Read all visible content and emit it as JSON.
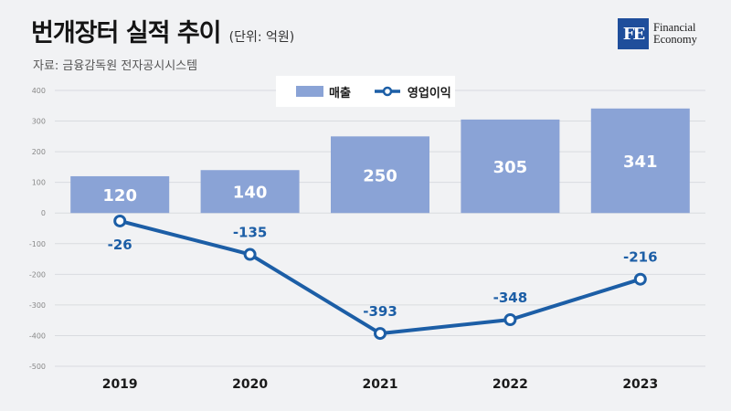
{
  "header": {
    "title": "번개장터 실적 추이",
    "unit": "(단위: 억원)",
    "source": "자료: 금융감독원 전자공시시스템"
  },
  "logo": {
    "mark": "FE",
    "line1": "Financial",
    "line2": "Economy"
  },
  "legend": {
    "sales": "매출",
    "profit": "영업이익"
  },
  "colors": {
    "bar": "#8aa3d6",
    "line": "#1c5ea6",
    "background": "#f1f2f4"
  },
  "chart_data": {
    "type": "bar",
    "categories": [
      "2019",
      "2020",
      "2021",
      "2022",
      "2023"
    ],
    "series": [
      {
        "name": "매출",
        "kind": "bar",
        "values": [
          120,
          140,
          250,
          305,
          341
        ]
      },
      {
        "name": "영업이익",
        "kind": "line",
        "values": [
          -26,
          -135,
          -393,
          -348,
          -216
        ]
      }
    ],
    "y_ticks": [
      400,
      300,
      200,
      100,
      0,
      -100,
      -200,
      -300,
      -400,
      -500
    ],
    "ylim": [
      -500,
      400
    ],
    "grid": true,
    "legend_position": "top-center"
  }
}
